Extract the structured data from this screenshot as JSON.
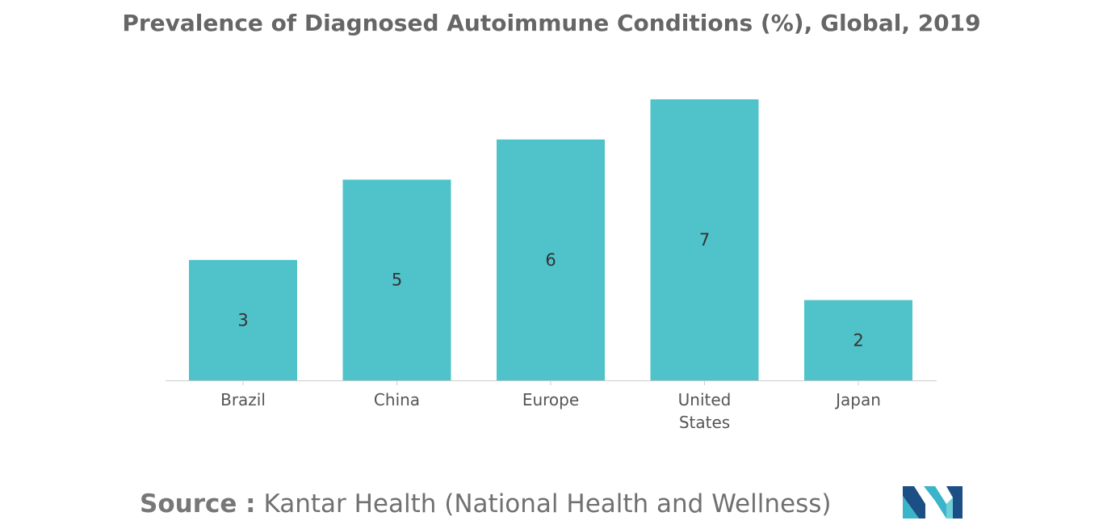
{
  "chart_data": {
    "type": "bar",
    "title": "Prevalence of Diagnosed Autoimmune Conditions (%), Global, 2019",
    "categories": [
      "Brazil",
      "China",
      "Europe",
      "United States",
      "Japan"
    ],
    "category_lines": [
      [
        "Brazil"
      ],
      [
        "China"
      ],
      [
        "Europe"
      ],
      [
        "United",
        "States"
      ],
      [
        "Japan"
      ]
    ],
    "values": [
      3,
      5,
      6,
      7,
      2
    ],
    "data_labels": [
      "3",
      "5",
      "6",
      "7",
      "2"
    ],
    "ylim": [
      0,
      7
    ],
    "grid": false,
    "legend": "none",
    "bar_color": "#4fc3c9",
    "axis_color": "#cccccc"
  },
  "source": {
    "label": "Source :",
    "text": "Kantar Health (National Health and Wellness)"
  },
  "logo": {
    "icon": "mordor-intelligence-logo-icon",
    "colors": [
      "#1b4f86",
      "#39b4c8",
      "#6fd0d8"
    ]
  }
}
